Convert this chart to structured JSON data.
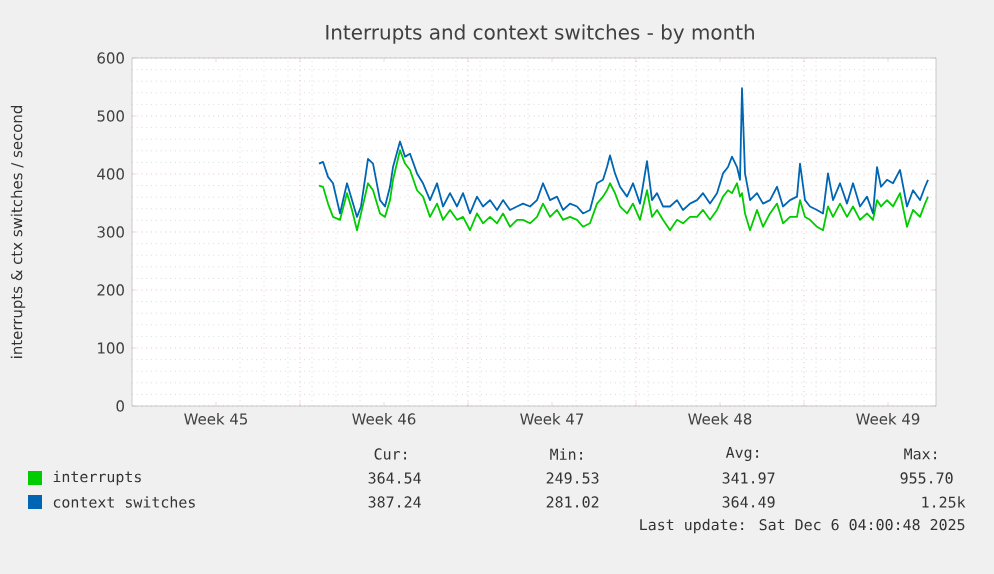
{
  "chart_data": {
    "type": "line",
    "title": "Interrupts and context switches - by month",
    "ylabel": "interrupts & ctx switches / second",
    "x": [
      "2025-11-10T19:00",
      "2025-11-10T23:00",
      "2025-11-11T04:00",
      "2025-11-11T09:00",
      "2025-11-11T16:00",
      "2025-11-11T23:00",
      "2025-11-12T04:00",
      "2025-11-12T09:00",
      "2025-11-12T13:00",
      "2025-11-12T20:00",
      "2025-11-13T01:00",
      "2025-11-13T08:00",
      "2025-11-13T13:00",
      "2025-11-13T18:00",
      "2025-11-13T21:00",
      "2025-11-14T04:00",
      "2025-11-14T09:00",
      "2025-11-14T14:00",
      "2025-11-14T21:00",
      "2025-11-15T03:00",
      "2025-11-15T10:00",
      "2025-11-15T17:00",
      "2025-11-15T23:00",
      "2025-11-16T06:00",
      "2025-11-16T13:00",
      "2025-11-16T19:00",
      "2025-11-17T02:00",
      "2025-11-17T09:00",
      "2025-11-17T15:00",
      "2025-11-17T22:00",
      "2025-11-18T05:00",
      "2025-11-18T11:00",
      "2025-11-18T18:00",
      "2025-11-19T01:00",
      "2025-11-19T07:00",
      "2025-11-19T14:00",
      "2025-11-19T21:00",
      "2025-11-20T03:00",
      "2025-11-20T10:00",
      "2025-11-20T17:00",
      "2025-11-20T23:00",
      "2025-11-21T06:00",
      "2025-11-21T13:00",
      "2025-11-21T19:00",
      "2025-11-22T02:00",
      "2025-11-22T09:00",
      "2025-11-22T15:00",
      "2025-11-22T19:00",
      "2025-11-22T22:00",
      "2025-11-23T03:00",
      "2025-11-23T08:00",
      "2025-11-23T15:00",
      "2025-11-23T21:00",
      "2025-11-24T04:00",
      "2025-11-24T11:00",
      "2025-11-24T16:00",
      "2025-11-24T21:00",
      "2025-11-25T03:00",
      "2025-11-25T10:00",
      "2025-11-25T17:00",
      "2025-11-25T23:00",
      "2025-11-26T06:00",
      "2025-11-26T13:00",
      "2025-11-26T19:00",
      "2025-11-27T02:00",
      "2025-11-27T09:00",
      "2025-11-27T15:00",
      "2025-11-27T20:00",
      "2025-11-28T00:00",
      "2025-11-28T05:00",
      "2025-11-28T08:00",
      "2025-11-28T10:00",
      "2025-11-28T13:00",
      "2025-11-28T18:00",
      "2025-11-29T01:00",
      "2025-11-29T07:00",
      "2025-11-29T14:00",
      "2025-11-29T21:00",
      "2025-11-30T03:00",
      "2025-11-30T10:00",
      "2025-11-30T17:00",
      "2025-11-30T20:00",
      "2025-12-01T01:00",
      "2025-12-01T06:00",
      "2025-12-01T13:00",
      "2025-12-01T19:00",
      "2025-12-02T00:00",
      "2025-12-02T05:00",
      "2025-12-02T12:00",
      "2025-12-02T19:00",
      "2025-12-03T01:00",
      "2025-12-03T08:00",
      "2025-12-03T15:00",
      "2025-12-03T21:00",
      "2025-12-04T01:00",
      "2025-12-04T05:00",
      "2025-12-04T11:00",
      "2025-12-04T17:00",
      "2025-12-05T00:00",
      "2025-12-05T07:00",
      "2025-12-05T13:00",
      "2025-12-05T20:00",
      "2025-12-06T01:00",
      "2025-12-06T04:00"
    ],
    "series": [
      {
        "name": "interrupts",
        "color": "#00cc00",
        "values": [
          380,
          378,
          349,
          326,
          321,
          367,
          338,
          303,
          332,
          384,
          372,
          332,
          326,
          355,
          390,
          441,
          418,
          407,
          372,
          361,
          326,
          349,
          321,
          338,
          321,
          326,
          303,
          332,
          315,
          326,
          315,
          332,
          309,
          321,
          321,
          315,
          326,
          349,
          326,
          338,
          321,
          326,
          321,
          309,
          315,
          349,
          361,
          372,
          384,
          367,
          344,
          332,
          349,
          321,
          372,
          326,
          338,
          321,
          303,
          321,
          315,
          326,
          326,
          338,
          321,
          338,
          361,
          372,
          367,
          384,
          361,
          367,
          332,
          303,
          338,
          309,
          332,
          349,
          315,
          326,
          326,
          355,
          326,
          321,
          309,
          303,
          344,
          326,
          349,
          326,
          344,
          321,
          332,
          321,
          355,
          344,
          355,
          344,
          367,
          309,
          338,
          326,
          349,
          361
        ]
      },
      {
        "name": "context switches",
        "color": "#0066b3",
        "values": [
          418,
          421,
          395,
          384,
          332,
          384,
          355,
          326,
          344,
          426,
          418,
          355,
          344,
          378,
          412,
          456,
          430,
          435,
          401,
          384,
          355,
          384,
          344,
          367,
          344,
          367,
          332,
          361,
          344,
          355,
          338,
          355,
          338,
          344,
          349,
          344,
          355,
          384,
          355,
          361,
          338,
          349,
          344,
          332,
          338,
          384,
          390,
          412,
          432,
          401,
          378,
          361,
          384,
          349,
          422,
          355,
          367,
          344,
          344,
          355,
          338,
          349,
          355,
          367,
          349,
          367,
          401,
          412,
          430,
          412,
          390,
          548,
          401,
          355,
          367,
          349,
          355,
          378,
          344,
          355,
          361,
          418,
          355,
          344,
          338,
          332,
          401,
          355,
          384,
          349,
          384,
          344,
          361,
          332,
          412,
          378,
          390,
          384,
          407,
          344,
          372,
          355,
          378,
          390
        ]
      }
    ],
    "xlim": [
      "2025-11-03T00:00",
      "2025-12-06T12:00"
    ],
    "xticks": [
      {
        "value": "2025-11-06T12:00",
        "label": "Week 45"
      },
      {
        "value": "2025-11-10",
        "label": null
      },
      {
        "value": "2025-11-13T12:00",
        "label": "Week 46"
      },
      {
        "value": "2025-11-17",
        "label": null
      },
      {
        "value": "2025-11-20T12:00",
        "label": "Week 47"
      },
      {
        "value": "2025-11-24",
        "label": null
      },
      {
        "value": "2025-11-27T12:00",
        "label": "Week 48"
      },
      {
        "value": "2025-12-01",
        "label": null
      },
      {
        "value": "2025-12-04T12:00",
        "label": "Week 49"
      }
    ],
    "ylim": [
      0,
      600
    ],
    "yticks": [
      0,
      100,
      200,
      300,
      400,
      500,
      600
    ],
    "grid": true,
    "legend": "bottom",
    "annotations": [
      "Cur:",
      "Min:",
      "Avg:",
      "Max:",
      "364.54",
      "249.53",
      "341.97",
      "955.70",
      "387.24",
      "281.02",
      "364.49",
      "1.25k",
      "Last update: Sat Dec  6 04:00:48 2025"
    ]
  }
}
